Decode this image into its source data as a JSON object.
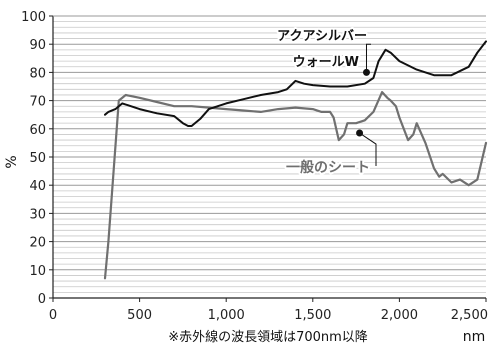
{
  "chart_data": {
    "type": "line",
    "xlabel": "nm",
    "ylabel": "%",
    "xlim": [
      0,
      2500
    ],
    "ylim": [
      0,
      100
    ],
    "xticks": [
      0,
      500,
      1000,
      1500,
      2000,
      2500
    ],
    "xtick_labels": [
      "0",
      "500",
      "1,000",
      "1,500",
      "2,000",
      "2,500"
    ],
    "yticks": [
      0,
      10,
      20,
      30,
      40,
      50,
      60,
      70,
      80,
      90,
      100
    ],
    "ytick_labels": [
      "0",
      "10",
      "20",
      "30",
      "40",
      "50",
      "60",
      "70",
      "80",
      "90",
      "100"
    ],
    "grid": "horizontal",
    "note": "※赤外線の波長領域は700nm以降",
    "series": [
      {
        "name": "アクアシルバーウォールW",
        "label_lines": [
          "アクアシルバー",
          "ウォールW"
        ],
        "color": "#111111",
        "x": [
          300,
          320,
          360,
          400,
          450,
          500,
          600,
          700,
          750,
          780,
          800,
          850,
          900,
          1000,
          1100,
          1200,
          1300,
          1350,
          1400,
          1450,
          1500,
          1600,
          1700,
          1800,
          1850,
          1880,
          1920,
          1950,
          2000,
          2100,
          2200,
          2300,
          2400,
          2450,
          2500
        ],
        "y": [
          65,
          66,
          67,
          69,
          68,
          67,
          65.5,
          64.5,
          62,
          61,
          61,
          63.5,
          67,
          69,
          70.5,
          72,
          73,
          74,
          77,
          76,
          75.5,
          75,
          75,
          76,
          78,
          84,
          88,
          87,
          84,
          81,
          79,
          79,
          82,
          87,
          91
        ]
      },
      {
        "name": "一般のシート",
        "label_lines": [
          "一般のシート"
        ],
        "color": "#707070",
        "x": [
          300,
          320,
          350,
          380,
          420,
          500,
          600,
          700,
          800,
          900,
          1000,
          1100,
          1200,
          1300,
          1400,
          1500,
          1550,
          1600,
          1620,
          1650,
          1680,
          1700,
          1750,
          1800,
          1850,
          1900,
          1930,
          1950,
          1980,
          2000,
          2050,
          2080,
          2100,
          2150,
          2200,
          2230,
          2250,
          2300,
          2350,
          2400,
          2450,
          2500
        ],
        "y": [
          7,
          20,
          45,
          70,
          72,
          71,
          69.5,
          68,
          68,
          67.5,
          67,
          66.5,
          66,
          67,
          67.5,
          67,
          66,
          66,
          64,
          56,
          58,
          62,
          62,
          63,
          66,
          73,
          71,
          70,
          68,
          64,
          56,
          58,
          62,
          55,
          46,
          43,
          44,
          41,
          42,
          40,
          42,
          55
        ]
      }
    ]
  }
}
